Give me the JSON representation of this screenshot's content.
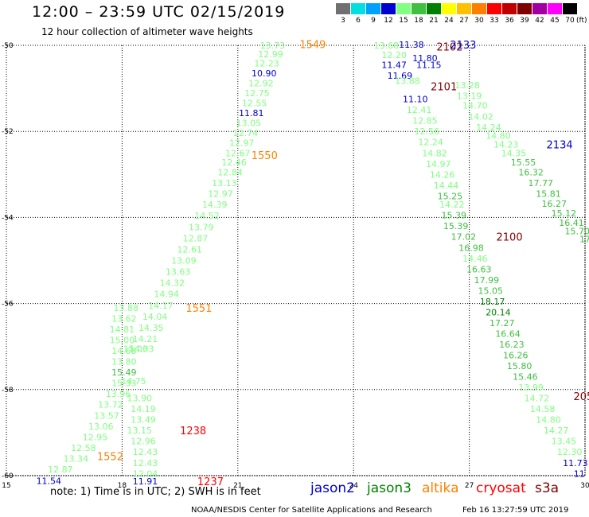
{
  "header": {
    "title": "12:00 – 23:59 UTC 02/15/2019",
    "subtitle": "12 hour collection of altimeter wave heights"
  },
  "color_scale": {
    "labels": [
      "3",
      "6",
      "9",
      "12",
      "15",
      "18",
      "21",
      "24",
      "27",
      "30",
      "33",
      "36",
      "39",
      "42",
      "45",
      "70"
    ],
    "colors": [
      "#707070",
      "#00e0e0",
      "#00a0ff",
      "#0000d0",
      "#80ff80",
      "#40c040",
      "#008000",
      "#ffff00",
      "#ffc000",
      "#ff8000",
      "#ff0000",
      "#c00000",
      "#800000",
      "#a000a0",
      "#ff00ff",
      "#000000"
    ],
    "unit": "(ft)"
  },
  "map": {
    "lon_labels": [
      "15",
      "18",
      "21",
      "24",
      "27",
      "30"
    ],
    "lat_labels": [
      "-50",
      "-52",
      "-54",
      "-56",
      "-58",
      "-60"
    ],
    "lon_range": [
      15,
      30
    ],
    "lat_range": [
      -60,
      -50
    ]
  },
  "tracks": [
    {
      "id": "1549",
      "label_color": "#ff8000",
      "label_pos": [
        22.6,
        -49.97
      ],
      "points": [
        [
          "13.73",
          21.9,
          -50.0,
          "#80ff80"
        ],
        [
          "12.99",
          21.85,
          -50.2,
          "#80ff80"
        ],
        [
          "12.23",
          21.75,
          -50.42,
          "#80ff80"
        ],
        [
          "10.90",
          21.68,
          -50.65,
          "#0000d0"
        ],
        [
          "12.92",
          21.6,
          -50.88,
          "#80ff80"
        ],
        [
          "12.75",
          21.5,
          -51.11,
          "#80ff80"
        ],
        [
          "12.55",
          21.43,
          -51.34,
          "#80ff80"
        ],
        [
          "11.81",
          21.35,
          -51.57,
          "#0000d0"
        ],
        [
          "13.05",
          21.28,
          -51.8,
          "#80ff80"
        ],
        [
          "12.74",
          21.2,
          -52.03,
          "#80ff80"
        ],
        [
          "12.97",
          21.1,
          -52.26,
          "#80ff80"
        ],
        [
          "12.67",
          21.0,
          -52.5,
          "#80ff80"
        ],
        [
          "12.46",
          20.9,
          -52.72,
          "#80ff80"
        ],
        [
          "12.84",
          20.8,
          -52.95,
          "#80ff80"
        ],
        [
          "13.13",
          20.65,
          -53.2,
          "#80ff80"
        ],
        [
          "12.97",
          20.55,
          -53.45,
          "#80ff80"
        ],
        [
          "14.39",
          20.4,
          -53.7,
          "#80ff80"
        ],
        [
          "14.52",
          20.2,
          -53.96,
          "#80ff80"
        ],
        [
          "13.79",
          20.05,
          -54.22,
          "#80ff80"
        ],
        [
          "12.87",
          19.9,
          -54.48,
          "#80ff80"
        ],
        [
          "12.61",
          19.75,
          -54.74,
          "#80ff80"
        ],
        [
          "13.09",
          19.6,
          -55.0,
          "#80ff80"
        ],
        [
          "13.63",
          19.45,
          -55.26,
          "#80ff80"
        ],
        [
          "14.32",
          19.3,
          -55.52,
          "#80ff80"
        ],
        [
          "14.94",
          19.15,
          -55.78,
          "#80ff80"
        ],
        [
          "14.17",
          19.0,
          -56.04,
          "#80ff80"
        ],
        [
          "14.04",
          18.85,
          -56.3,
          "#80ff80"
        ],
        [
          "14.35",
          18.75,
          -56.56,
          "#80ff80"
        ],
        [
          "14.21",
          18.6,
          -56.82,
          "#80ff80"
        ],
        [
          "14.03",
          18.5,
          -57.05,
          "#80ff80"
        ]
      ]
    },
    {
      "id": "1550",
      "label_color": "#ff8000",
      "label_pos": [
        21.35,
        -52.55
      ],
      "points": []
    },
    {
      "id": "1551",
      "label_color": "#ff8000",
      "label_pos": [
        19.65,
        -56.1
      ],
      "points": [
        [
          "13.88",
          18.1,
          -56.1,
          "#80ff80"
        ],
        [
          "13.62",
          18.05,
          -56.35,
          "#80ff80"
        ],
        [
          "14.81",
          18.0,
          -56.6,
          "#80ff80"
        ],
        [
          "15.00",
          18.0,
          -56.85,
          "#80ff80"
        ],
        [
          "14.68",
          18.05,
          -57.1,
          "#80ff80"
        ],
        [
          "13.80",
          18.05,
          -57.35,
          "#80ff80"
        ],
        [
          "15.49",
          18.05,
          -57.6,
          "#40c040"
        ],
        [
          "15.33",
          18.05,
          -57.85,
          "#80ff80"
        ],
        [
          "13.96",
          17.9,
          -58.1,
          "#80ff80"
        ],
        [
          "13.72",
          17.7,
          -58.35,
          "#80ff80"
        ],
        [
          "13.57",
          17.6,
          -58.6,
          "#80ff80"
        ],
        [
          "13.06",
          17.45,
          -58.85,
          "#80ff80"
        ],
        [
          "12.95",
          17.3,
          -59.1,
          "#80ff80"
        ],
        [
          "12.58",
          17.0,
          -59.35,
          "#80ff80"
        ],
        [
          "13.34",
          16.8,
          -59.6,
          "#80ff80"
        ],
        [
          "12.87",
          16.4,
          -59.85,
          "#80ff80"
        ],
        [
          "11.54",
          16.1,
          -60.12,
          "#0000d0"
        ]
      ]
    },
    {
      "id": "1552",
      "label_color": "#ff8000",
      "label_pos": [
        17.35,
        -59.55
      ],
      "points": []
    },
    {
      "id": "1238",
      "label_color": "#ff0000",
      "label_pos": [
        19.5,
        -58.95
      ],
      "points": [
        [
          "15.03",
          18.35,
          -57.05,
          "#80ff80"
        ],
        [
          "14.75",
          18.3,
          -57.8,
          "#80ff80"
        ],
        [
          "13.90",
          18.45,
          -58.2,
          "#80ff80"
        ],
        [
          "14.19",
          18.55,
          -58.45,
          "#80ff80"
        ],
        [
          "13.49",
          18.55,
          -58.7,
          "#80ff80"
        ],
        [
          "13.15",
          18.45,
          -58.95,
          "#80ff80"
        ],
        [
          "12.96",
          18.55,
          -59.2,
          "#80ff80"
        ],
        [
          "12.43",
          18.6,
          -59.45,
          "#80ff80"
        ],
        [
          "12.43",
          18.6,
          -59.7,
          "#80ff80"
        ],
        [
          "12.04",
          18.6,
          -59.95,
          "#80ff80"
        ],
        [
          "11.91",
          18.6,
          -60.13,
          "#0000d0"
        ]
      ]
    },
    {
      "id": "1237",
      "label_color": "#ff0000",
      "label_pos": [
        19.95,
        -60.13
      ],
      "points": []
    },
    {
      "id": "2102",
      "label_color": "#800000",
      "label_pos": [
        26.15,
        -50.03
      ],
      "points": [
        [
          "13.68",
          24.85,
          -50.0,
          "#80ff80"
        ],
        [
          "11.38",
          25.5,
          -49.98,
          "#0000d0"
        ],
        [
          "12.20",
          25.05,
          -50.22,
          "#80ff80"
        ],
        [
          "11.80",
          25.85,
          -50.3,
          "#0000d0"
        ],
        [
          "11.47",
          25.05,
          -50.45,
          "#0000d0"
        ],
        [
          "11.15",
          25.95,
          -50.45,
          "#0000d0"
        ],
        [
          "11.69",
          25.2,
          -50.7,
          "#0000d0"
        ],
        [
          "13.88",
          25.4,
          -50.82,
          "#80ff80"
        ],
        [
          "11.10",
          25.6,
          -51.25,
          "#0000d0"
        ],
        [
          "12.41",
          25.7,
          -51.5,
          "#80ff80"
        ],
        [
          "12.85",
          25.85,
          -51.75,
          "#80ff80"
        ],
        [
          "12.56",
          25.9,
          -52.0,
          "#80ff80"
        ],
        [
          "12.24",
          26.0,
          -52.25,
          "#80ff80"
        ],
        [
          "14.82",
          26.1,
          -52.5,
          "#80ff80"
        ],
        [
          "14.97",
          26.2,
          -52.75,
          "#80ff80"
        ],
        [
          "14.26",
          26.3,
          -53.0,
          "#80ff80"
        ],
        [
          "14.44",
          26.4,
          -53.25,
          "#80ff80"
        ],
        [
          "15.25",
          26.5,
          -53.5,
          "#40c040"
        ],
        [
          "14.22",
          26.55,
          -53.7,
          "#80ff80"
        ],
        [
          "15.39",
          26.6,
          -53.95,
          "#40c040"
        ],
        [
          "15.39",
          26.65,
          -54.2,
          "#40c040"
        ],
        [
          "17.02",
          26.85,
          -54.45,
          "#40c040"
        ],
        [
          "16.98",
          27.05,
          -54.7,
          "#40c040"
        ],
        [
          "14.46",
          27.15,
          -54.95,
          "#80ff80"
        ],
        [
          "16.63",
          27.25,
          -55.2,
          "#40c040"
        ],
        [
          "17.99",
          27.45,
          -55.45,
          "#40c040"
        ],
        [
          "15.05",
          27.55,
          -55.7,
          "#40c040"
        ],
        [
          "18.17",
          27.6,
          -55.95,
          "#008000"
        ],
        [
          "20.14",
          27.75,
          -56.2,
          "#008000"
        ],
        [
          "17.27",
          27.85,
          -56.45,
          "#40c040"
        ],
        [
          "16.64",
          28.0,
          -56.7,
          "#40c040"
        ],
        [
          "16.23",
          28.1,
          -56.95,
          "#40c040"
        ],
        [
          "16.26",
          28.2,
          -57.2,
          "#40c040"
        ],
        [
          "15.80",
          28.3,
          -57.45,
          "#40c040"
        ],
        [
          "15.46",
          28.45,
          -57.7,
          "#40c040"
        ],
        [
          "13.99",
          28.6,
          -57.95,
          "#80ff80"
        ],
        [
          "14.72",
          28.75,
          -58.2,
          "#80ff80"
        ],
        [
          "14.58",
          28.9,
          -58.45,
          "#80ff80"
        ],
        [
          "14.80",
          29.05,
          -58.7,
          "#80ff80"
        ],
        [
          "14.27",
          29.25,
          -58.95,
          "#80ff80"
        ],
        [
          "13.45",
          29.45,
          -59.2,
          "#80ff80"
        ],
        [
          "12.30",
          29.6,
          -59.45,
          "#80ff80"
        ],
        [
          "11.73",
          29.75,
          -59.7,
          "#0000d0"
        ],
        [
          "11",
          29.85,
          -59.95,
          "#0000d0"
        ]
      ]
    },
    {
      "id": "2101",
      "label_color": "#800000",
      "label_pos": [
        26.0,
        -50.95
      ],
      "points": []
    },
    {
      "id": "2100",
      "label_color": "#800000",
      "label_pos": [
        27.7,
        -54.45
      ],
      "points": []
    },
    {
      "id": "205",
      "label_color": "#800000",
      "label_pos": [
        29.7,
        -58.15
      ],
      "points": []
    },
    {
      "id": "2133",
      "label_color": "#0000d0",
      "label_pos": [
        26.5,
        -49.98
      ],
      "points": [
        [
          "13.28",
          26.95,
          -50.92,
          "#80ff80"
        ],
        [
          "13.19",
          27.0,
          -51.17,
          "#80ff80"
        ],
        [
          "14.70",
          27.15,
          -51.4,
          "#80ff80"
        ],
        [
          "14.02",
          27.3,
          -51.65,
          "#80ff80"
        ],
        [
          "14.24",
          27.5,
          -51.9,
          "#80ff80"
        ],
        [
          "14.80",
          27.75,
          -52.1,
          "#80ff80"
        ],
        [
          "14.23",
          27.95,
          -52.3,
          "#80ff80"
        ],
        [
          "14.35",
          28.15,
          -52.5,
          "#80ff80"
        ],
        [
          "15.55",
          28.4,
          -52.72,
          "#40c040"
        ],
        [
          "16.32",
          28.6,
          -52.95,
          "#40c040"
        ],
        [
          "17.77",
          28.85,
          -53.2,
          "#40c040"
        ],
        [
          "15.81",
          29.05,
          -53.45,
          "#40c040"
        ],
        [
          "16.27",
          29.2,
          -53.68,
          "#40c040"
        ],
        [
          "15.12",
          29.45,
          -53.9,
          "#40c040"
        ],
        [
          "16.41",
          29.65,
          -54.12,
          "#40c040"
        ],
        [
          "15.70",
          29.8,
          -54.32,
          "#40c040"
        ],
        [
          "17",
          30.0,
          -54.5,
          "#40c040"
        ]
      ]
    },
    {
      "id": "2134",
      "label_color": "#0000d0",
      "label_pos": [
        29.0,
        -52.3
      ],
      "points": []
    }
  ],
  "footer": {
    "note": "note: 1) Time is in UTC; 2) SWH is in feet",
    "legend": [
      {
        "name": "jason2",
        "color": "#0000d0"
      },
      {
        "name": "jason3",
        "color": "#008000"
      },
      {
        "name": "altika",
        "color": "#ff8000"
      },
      {
        "name": "cryosat",
        "color": "#ff0000"
      },
      {
        "name": "s3a",
        "color": "#800000"
      }
    ],
    "credit": "NOAA/NESDIS Center for Satellite Applications and Research",
    "timestamp": "Feb 16 13:27:59 UTC 2019"
  }
}
